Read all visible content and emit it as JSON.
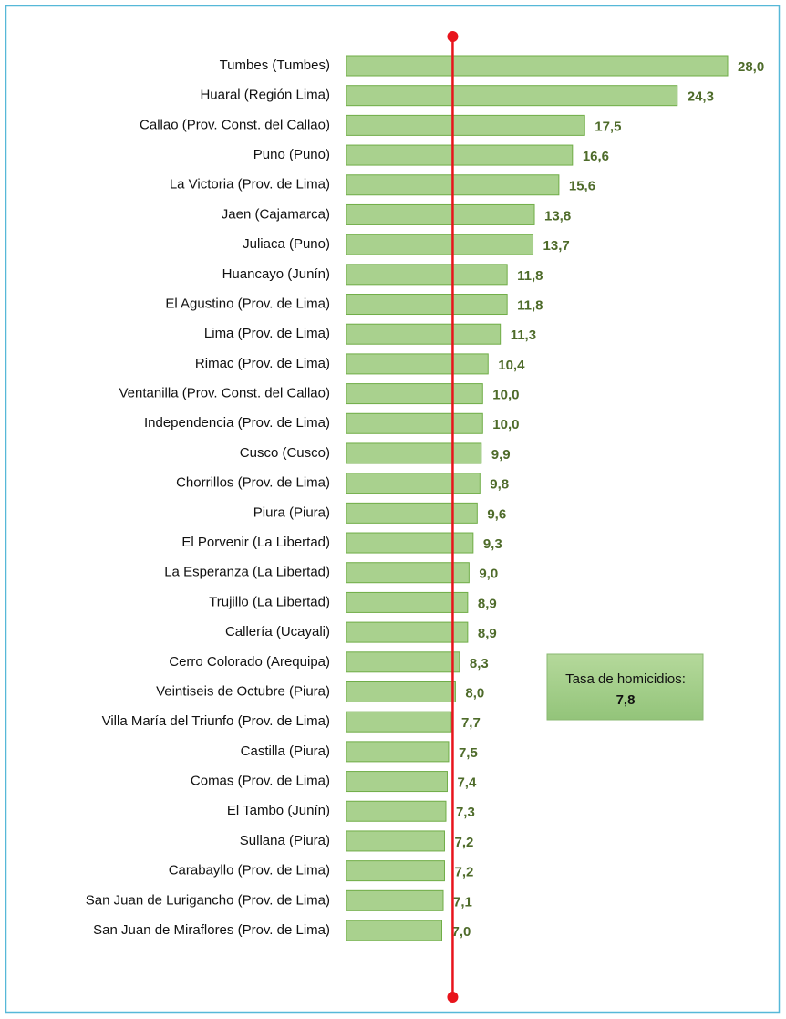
{
  "chart_data": {
    "type": "hbar",
    "categories": [
      "Tumbes (Tumbes)",
      "Huaral (Región Lima)",
      "Callao (Prov. Const. del Callao)",
      "Puno (Puno)",
      "La Victoria  (Prov. de Lima)",
      "Jaen (Cajamarca)",
      "Juliaca (Puno)",
      "Huancayo (Junín)",
      "El Agustino  (Prov. de Lima)",
      "Lima  (Prov. de Lima)",
      "Rimac  (Prov. de Lima)",
      "Ventanilla (Prov. Const. del Callao)",
      "Independencia  (Prov. de Lima)",
      "Cusco (Cusco)",
      "Chorrillos  (Prov. de Lima)",
      "Piura (Piura)",
      "El Porvenir (La Libertad)",
      "La Esperanza (La Libertad)",
      "Trujillo (La Libertad)",
      "Callería (Ucayali)",
      "Cerro Colorado (Arequipa)",
      "Veintiseis de Octubre (Piura)",
      "Villa María del Triunfo  (Prov. de Lima)",
      "Castilla (Piura)",
      "Comas  (Prov. de Lima)",
      "El Tambo (Junín)",
      "Sullana (Piura)",
      "Carabayllo  (Prov. de Lima)",
      "San Juan de Lurigancho  (Prov. de Lima)",
      "San Juan de Miraflores  (Prov. de Lima)"
    ],
    "values": [
      28.0,
      24.3,
      17.5,
      16.6,
      15.6,
      13.8,
      13.7,
      11.8,
      11.8,
      11.3,
      10.4,
      10.0,
      10.0,
      9.9,
      9.8,
      9.6,
      9.3,
      9.0,
      8.9,
      8.9,
      8.3,
      8.0,
      7.7,
      7.5,
      7.4,
      7.3,
      7.2,
      7.2,
      7.1,
      7.0
    ],
    "value_labels": [
      "28,0",
      "24,3",
      "17,5",
      "16,6",
      "15,6",
      "13,8",
      "13,7",
      "11,8",
      "11,8",
      "11,3",
      "10,4",
      "10,0",
      "10,0",
      "9,9",
      "9,8",
      "9,6",
      "9,3",
      "9,0",
      "8,9",
      "8,9",
      "8,3",
      "8,0",
      "7,7",
      "7,5",
      "7,4",
      "7,3",
      "7,2",
      "7,2",
      "7,1",
      "7,0"
    ],
    "color": "#a9d18e",
    "reference_line": {
      "value": 7.8,
      "label": "Tasa de homicidios:",
      "value_label": "7,8",
      "color": "#e8141c"
    }
  }
}
